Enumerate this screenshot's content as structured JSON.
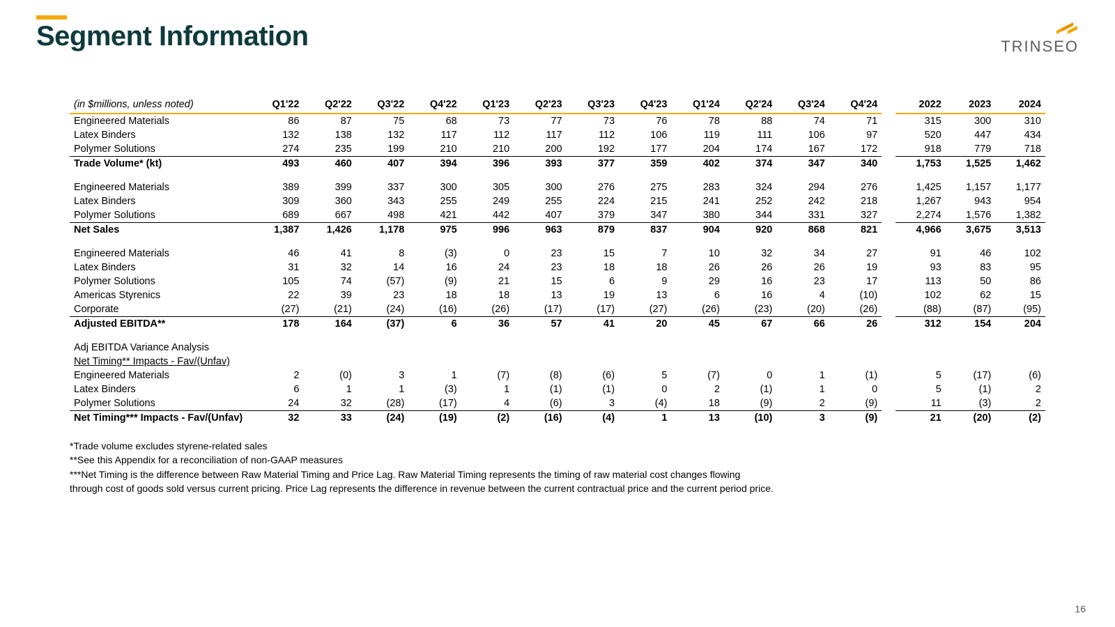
{
  "title": "Segment Information",
  "logo": {
    "text": "TRINSEO",
    "accent_color": "#f2a900"
  },
  "page_number": "16",
  "table": {
    "unit_label": "(in $millions, unless noted)",
    "quarter_cols": [
      "Q1'22",
      "Q2'22",
      "Q3'22",
      "Q4'22",
      "Q1'23",
      "Q2'23",
      "Q3'23",
      "Q4'23",
      "Q1'24",
      "Q2'24",
      "Q3'24",
      "Q4'24"
    ],
    "year_cols": [
      "2022",
      "2023",
      "2024"
    ],
    "sections": [
      {
        "rows": [
          {
            "label": "Engineered Materials",
            "q": [
              "86",
              "87",
              "75",
              "68",
              "73",
              "77",
              "73",
              "76",
              "78",
              "88",
              "74",
              "71"
            ],
            "y": [
              "315",
              "300",
              "310"
            ]
          },
          {
            "label": "Latex Binders",
            "q": [
              "132",
              "138",
              "132",
              "117",
              "112",
              "117",
              "112",
              "106",
              "119",
              "111",
              "106",
              "97"
            ],
            "y": [
              "520",
              "447",
              "434"
            ]
          },
          {
            "label": "Polymer Solutions",
            "q": [
              "274",
              "235",
              "199",
              "210",
              "210",
              "200",
              "192",
              "177",
              "204",
              "174",
              "167",
              "172"
            ],
            "y": [
              "918",
              "779",
              "718"
            ],
            "underline": true
          }
        ],
        "subtotal": {
          "label": "Trade Volume* (kt)",
          "q": [
            "493",
            "460",
            "407",
            "394",
            "396",
            "393",
            "377",
            "359",
            "402",
            "374",
            "347",
            "340"
          ],
          "y": [
            "1,753",
            "1,525",
            "1,462"
          ]
        }
      },
      {
        "rows": [
          {
            "label": "Engineered Materials",
            "q": [
              "389",
              "399",
              "337",
              "300",
              "305",
              "300",
              "276",
              "275",
              "283",
              "324",
              "294",
              "276"
            ],
            "y": [
              "1,425",
              "1,157",
              "1,177"
            ]
          },
          {
            "label": "Latex Binders",
            "q": [
              "309",
              "360",
              "343",
              "255",
              "249",
              "255",
              "224",
              "215",
              "241",
              "252",
              "242",
              "218"
            ],
            "y": [
              "1,267",
              "943",
              "954"
            ]
          },
          {
            "label": "Polymer Solutions",
            "q": [
              "689",
              "667",
              "498",
              "421",
              "442",
              "407",
              "379",
              "347",
              "380",
              "344",
              "331",
              "327"
            ],
            "y": [
              "2,274",
              "1,576",
              "1,382"
            ],
            "underline": true
          }
        ],
        "subtotal": {
          "label": "Net Sales",
          "q": [
            "1,387",
            "1,426",
            "1,178",
            "975",
            "996",
            "963",
            "879",
            "837",
            "904",
            "920",
            "868",
            "821"
          ],
          "y": [
            "4,966",
            "3,675",
            "3,513"
          ]
        }
      },
      {
        "rows": [
          {
            "label": "Engineered Materials",
            "q": [
              "46",
              "41",
              "8",
              "(3)",
              "0",
              "23",
              "15",
              "7",
              "10",
              "32",
              "34",
              "27"
            ],
            "y": [
              "91",
              "46",
              "102"
            ]
          },
          {
            "label": "Latex Binders",
            "q": [
              "31",
              "32",
              "14",
              "16",
              "24",
              "23",
              "18",
              "18",
              "26",
              "26",
              "26",
              "19"
            ],
            "y": [
              "93",
              "83",
              "95"
            ]
          },
          {
            "label": "Polymer Solutions",
            "q": [
              "105",
              "74",
              "(57)",
              "(9)",
              "21",
              "15",
              "6",
              "9",
              "29",
              "16",
              "23",
              "17"
            ],
            "y": [
              "113",
              "50",
              "86"
            ]
          },
          {
            "label": "Americas Styrenics",
            "q": [
              "22",
              "39",
              "23",
              "18",
              "18",
              "13",
              "19",
              "13",
              "6",
              "16",
              "4",
              "(10)"
            ],
            "y": [
              "102",
              "62",
              "15"
            ]
          },
          {
            "label": "Corporate",
            "q": [
              "(27)",
              "(21)",
              "(24)",
              "(16)",
              "(26)",
              "(17)",
              "(17)",
              "(27)",
              "(26)",
              "(23)",
              "(20)",
              "(26)"
            ],
            "y": [
              "(88)",
              "(87)",
              "(95)"
            ],
            "underline": true
          }
        ],
        "subtotal": {
          "label": "Adjusted EBITDA**",
          "q": [
            "178",
            "164",
            "(37)",
            "6",
            "36",
            "57",
            "41",
            "20",
            "45",
            "67",
            "66",
            "26"
          ],
          "y": [
            "312",
            "154",
            "204"
          ]
        }
      },
      {
        "header_lines": [
          "Adj EBITDA Variance Analysis",
          "Net Timing** Impacts - Fav/(Unfav)"
        ],
        "rows": [
          {
            "label": "Engineered Materials",
            "q": [
              "2",
              "(0)",
              "3",
              "1",
              "(7)",
              "(8)",
              "(6)",
              "5",
              "(7)",
              "0",
              "1",
              "(1)"
            ],
            "y": [
              "5",
              "(17)",
              "(6)"
            ]
          },
          {
            "label": "Latex Binders",
            "q": [
              "6",
              "1",
              "1",
              "(3)",
              "1",
              "(1)",
              "(1)",
              "0",
              "2",
              "(1)",
              "1",
              "0"
            ],
            "y": [
              "5",
              "(1)",
              "2"
            ]
          },
          {
            "label": "Polymer Solutions",
            "q": [
              "24",
              "32",
              "(28)",
              "(17)",
              "4",
              "(6)",
              "3",
              "(4)",
              "18",
              "(9)",
              "2",
              "(9)"
            ],
            "y": [
              "11",
              "(3)",
              "2"
            ],
            "underline": true
          }
        ],
        "subtotal": {
          "label": "Net Timing*** Impacts - Fav/(Unfav)",
          "q": [
            "32",
            "33",
            "(24)",
            "(19)",
            "(2)",
            "(16)",
            "(4)",
            "1",
            "13",
            "(10)",
            "3",
            "(9)"
          ],
          "y": [
            "21",
            "(20)",
            "(2)"
          ]
        }
      }
    ]
  },
  "footnotes": [
    "*Trade volume excludes styrene-related sales",
    "**See this Appendix for a reconciliation of non-GAAP measures",
    "***Net Timing is the difference between Raw Material Timing and Price Lag. Raw Material Timing represents the timing of raw material cost changes flowing",
    "through cost of goods sold versus current pricing.  Price Lag represents the difference in revenue between the current contractual price and the current period price."
  ]
}
